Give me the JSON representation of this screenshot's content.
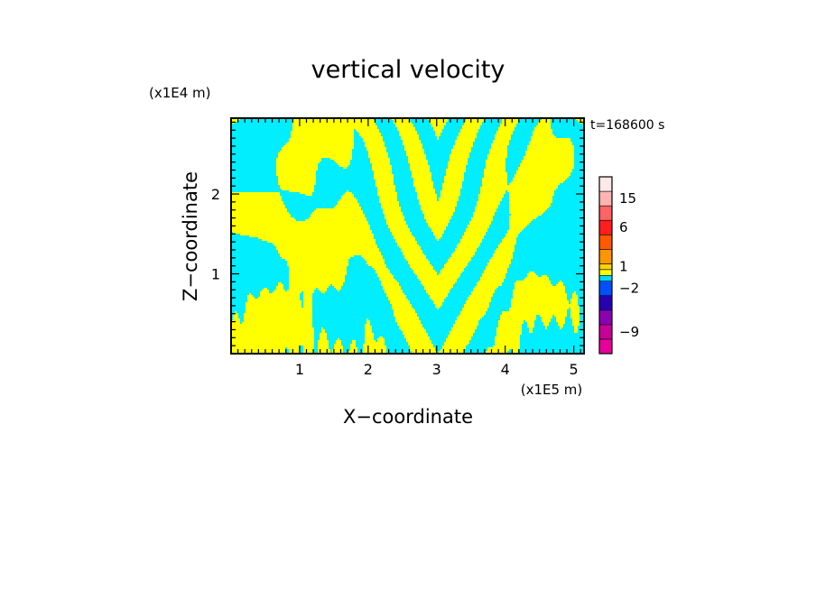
{
  "chart_data": {
    "type": "heatmap",
    "title": "vertical velocity",
    "xlabel": "X−coordinate",
    "ylabel": "Z−coordinate",
    "x_scale_label": "(x1E5 m)",
    "y_scale_label": "(x1E4 m)",
    "time_label": "t=168600 s",
    "xlim": [
      0,
      5.15
    ],
    "ylim": [
      0,
      2.95
    ],
    "x_ticks": [
      {
        "value": 1,
        "label": "1"
      },
      {
        "value": 2,
        "label": "2"
      },
      {
        "value": 3,
        "label": "3"
      },
      {
        "value": 4,
        "label": "4"
      },
      {
        "value": 5,
        "label": "5"
      }
    ],
    "y_ticks": [
      {
        "value": 1,
        "label": "1"
      },
      {
        "value": 2,
        "label": "2"
      }
    ],
    "field_colors": {
      "positive": "#ffff00",
      "negative": "#00eeff"
    },
    "colorbar": {
      "levels": [
        {
          "color": "#e8009a"
        },
        {
          "color": "#c8009a"
        },
        {
          "color": "#8c00b4"
        },
        {
          "color": "#2800b4"
        },
        {
          "color": "#0050ff"
        },
        {
          "color": "#00d8ff"
        },
        {
          "color": "#ffff00"
        },
        {
          "color": "#ffd200"
        },
        {
          "color": "#ff9600"
        },
        {
          "color": "#ff5a00"
        },
        {
          "color": "#ff1e1e"
        },
        {
          "color": "#ff6464"
        },
        {
          "color": "#ffb4b4"
        },
        {
          "color": "#ffe8e8"
        }
      ],
      "labels": [
        {
          "label": "−9",
          "band": 1
        },
        {
          "label": "−2",
          "band": 4
        },
        {
          "label": "1",
          "band": 7
        },
        {
          "label": "6",
          "band": 10
        },
        {
          "label": "15",
          "band": 12
        }
      ]
    }
  }
}
